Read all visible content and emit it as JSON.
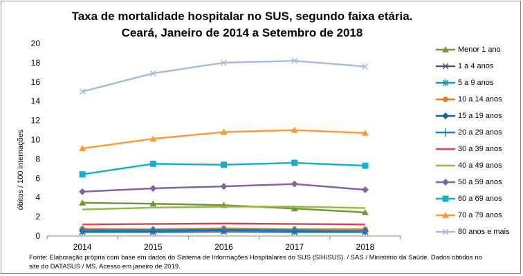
{
  "chart_data": {
    "type": "line",
    "title": "Taxa de mortalidade hospitalar no SUS, segundo faixa etária.",
    "subtitle": "Ceará, Janeiro de 2014 a Setembro de 2018",
    "xlabel": "",
    "ylabel": "óbitos / 100 internações",
    "ylim": [
      0,
      20
    ],
    "yticks": [
      "0",
      "2",
      "4",
      "6",
      "8",
      "10",
      "12",
      "14",
      "16",
      "18",
      "20"
    ],
    "categories": [
      "2014",
      "2015",
      "2016",
      "2017",
      "2018"
    ],
    "grid": false,
    "legend_position": "right",
    "series": [
      {
        "name": "Menor 1 ano",
        "values": [
          3.45,
          3.35,
          3.2,
          2.85,
          2.45
        ],
        "color": "#77933C",
        "marker": "triangle"
      },
      {
        "name": "1 a 4 anos",
        "values": [
          0.4,
          0.4,
          0.45,
          0.4,
          0.4
        ],
        "color": "#604A7B",
        "marker": "x"
      },
      {
        "name": "5 a 9 anos",
        "values": [
          0.45,
          0.45,
          0.5,
          0.45,
          0.45
        ],
        "color": "#1F93A6",
        "marker": "asterisk"
      },
      {
        "name": "10 a 14 anos",
        "values": [
          0.75,
          0.7,
          0.8,
          0.7,
          0.7
        ],
        "color": "#E97B2B",
        "marker": "circle"
      },
      {
        "name": "15 a 19 anos",
        "values": [
          0.55,
          0.55,
          0.6,
          0.55,
          0.5
        ],
        "color": "#1F5F96",
        "marker": "diamond"
      },
      {
        "name": "20 a 29 anos",
        "values": [
          0.6,
          0.6,
          0.65,
          0.6,
          0.5
        ],
        "color": "#1F7FC4",
        "marker": "plus"
      },
      {
        "name": "30 a 39 anos",
        "values": [
          1.2,
          1.25,
          1.3,
          1.25,
          1.2
        ],
        "color": "#D9434A",
        "marker": "none"
      },
      {
        "name": "40 a 49 anos",
        "values": [
          2.75,
          2.95,
          3.05,
          3.05,
          2.9
        ],
        "color": "#8CBE4A",
        "marker": "none"
      },
      {
        "name": "50 a 59 anos",
        "values": [
          4.6,
          4.95,
          5.15,
          5.4,
          4.8
        ],
        "color": "#8064A2",
        "marker": "diamond"
      },
      {
        "name": "60 a 69 anos",
        "values": [
          6.4,
          7.5,
          7.4,
          7.6,
          7.3
        ],
        "color": "#17AECB",
        "marker": "square"
      },
      {
        "name": "70 a 79 anos",
        "values": [
          9.1,
          10.1,
          10.8,
          11.0,
          10.7
        ],
        "color": "#FF9A3C",
        "marker": "triangle"
      },
      {
        "name": "80 anos e mais",
        "values": [
          15.0,
          16.9,
          18.0,
          18.2,
          17.6
        ],
        "color": "#A8BCD9",
        "marker": "x"
      }
    ]
  },
  "footer": {
    "line1": "Fonte: Elaboração própria com base em dados do  Sistema de Informações Hospitalares do SUS (SIH/SUS). / SAS / Ministério da Saúde. Dados obtidos no",
    "line2": "site do DATASUS / MS. Acesso em janeiro de 2019."
  }
}
